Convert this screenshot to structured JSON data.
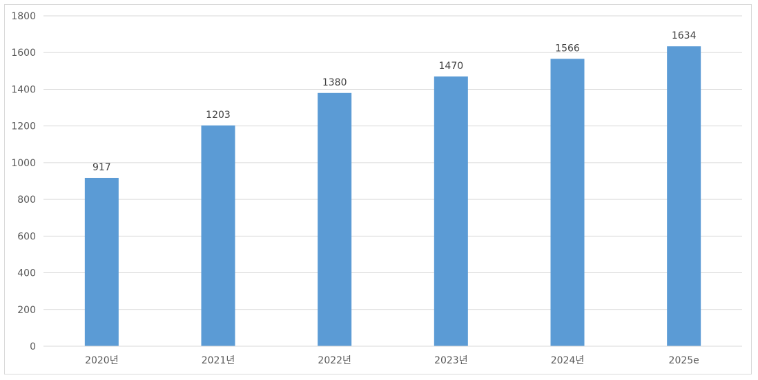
{
  "chart_data": {
    "type": "bar",
    "categories": [
      "2020년",
      "2021년",
      "2022년",
      "2023년",
      "2024년",
      "2025e"
    ],
    "values": [
      917,
      1203,
      1380,
      1470,
      1566,
      1634
    ],
    "data_labels": [
      "917",
      "1203",
      "1380",
      "1470",
      "1566",
      "1634"
    ],
    "title": "",
    "xlabel": "",
    "ylabel": "",
    "ylim": [
      0,
      1800
    ],
    "yticks": [
      0,
      200,
      400,
      600,
      800,
      1000,
      1200,
      1400,
      1600,
      1800
    ],
    "ytick_labels": [
      "0",
      "200",
      "400",
      "600",
      "800",
      "1000",
      "1200",
      "1400",
      "1600",
      "1800"
    ],
    "grid": true,
    "legend": "none",
    "bar_color": "#5b9bd5",
    "grid_color": "#d9d9d9"
  }
}
